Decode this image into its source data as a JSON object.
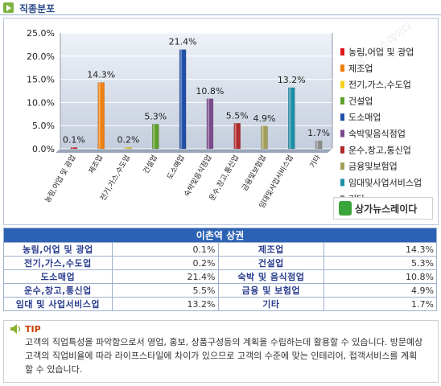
{
  "header": {
    "title": "직종분포"
  },
  "chart_data": {
    "type": "bar",
    "categories": [
      "농림,어업 및 광업",
      "제조업",
      "전기,가스,수도업",
      "건설업",
      "도소매업",
      "숙박및음식점업",
      "운수,창고,통신업",
      "금융및보험업",
      "임대및사업서비스업",
      "기타"
    ],
    "values": [
      0.1,
      14.3,
      0.2,
      5.3,
      21.4,
      10.8,
      5.5,
      4.9,
      13.2,
      1.7
    ],
    "value_labels": [
      "0.1%",
      "14.3%",
      "0.2%",
      "5.3%",
      "21.4%",
      "10.8%",
      "5.5%",
      "4.9%",
      "13.2%",
      "1.7%"
    ],
    "yticks": [
      "0.0%",
      "5.0%",
      "10.0%",
      "15.0%",
      "20.0%",
      "25.0%"
    ],
    "ylim": [
      0,
      25
    ],
    "colors": [
      "#e0161d",
      "#f07f0f",
      "#f2d21a",
      "#5e9e2a",
      "#1f4fa8",
      "#7a4a8c",
      "#b02a2a",
      "#a39e5a",
      "#1c8fa6",
      "#8c8c8c"
    ],
    "legend": [
      "농림,어업 및 광업",
      "제조업",
      "전기,가스,수도업",
      "건설업",
      "도소매업",
      "숙박및음식점업",
      "운수,창고,통신업",
      "금융및보험업",
      "임대및사업서비스업",
      "기타"
    ],
    "legend_position": "right",
    "grid": true,
    "watermark": "상가뉴스레이다"
  },
  "logo": {
    "text": "상가뉴스레이다"
  },
  "table": {
    "title": "이촌역 상권",
    "rows": [
      [
        {
          "label": "농림,어업 및 광업",
          "value": "0.1%"
        },
        {
          "label": "제조업",
          "value": "14.3%"
        }
      ],
      [
        {
          "label": "전기,가스,수도업",
          "value": "0.2%"
        },
        {
          "label": "건설업",
          "value": "5.3%"
        }
      ],
      [
        {
          "label": "도소매업",
          "value": "21.4%"
        },
        {
          "label": "숙박 및 음식점업",
          "value": "10.8%"
        }
      ],
      [
        {
          "label": "운수,창고,통신업",
          "value": "5.5%"
        },
        {
          "label": "금융 및 보험업",
          "value": "4.9%"
        }
      ],
      [
        {
          "label": "임대 및 사업서비스업",
          "value": "13.2%"
        },
        {
          "label": "기타",
          "value": "1.7%"
        }
      ]
    ]
  },
  "tip": {
    "label": "TIP",
    "text": "고객의 직업특성을 파악함으로서 영업, 홍보, 상품구성등의 계획을 수립하는데 활용할 수 있습니다. 방문예상 고객의 직업비율에 따라 라이프스타일에 차이가 있으므로 고객의 수준에 맞는 인테리어, 접객서비스를 계획 할 수 있습니다."
  }
}
